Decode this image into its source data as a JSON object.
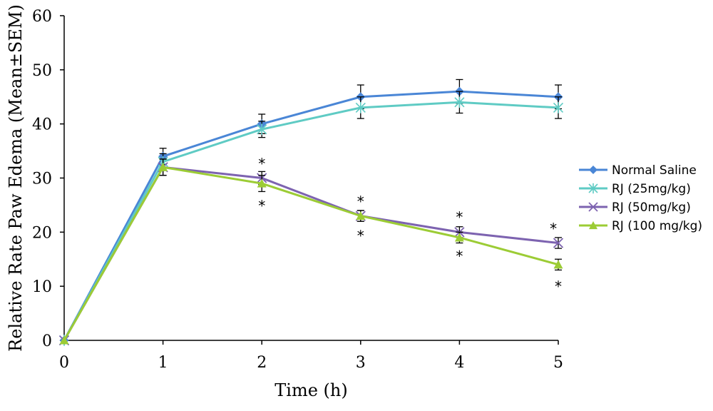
{
  "chart_data": {
    "type": "line",
    "title": "",
    "xlabel": "Time (h)",
    "ylabel": "Relative Rate Paw Edema (Mean±SEM)",
    "x": [
      0,
      1,
      2,
      3,
      4,
      5
    ],
    "xlim": [
      0,
      5
    ],
    "ylim": [
      0,
      60
    ],
    "yticks": [
      0,
      10,
      20,
      30,
      40,
      50,
      60
    ],
    "grid": false,
    "legend_position": "right",
    "series": [
      {
        "name": "Normal Saline",
        "color": "#4a86d6",
        "marker": "diamond",
        "values": [
          0,
          34,
          40,
          45,
          46,
          45
        ],
        "error": [
          0,
          1.5,
          1.8,
          2.2,
          2.2,
          2.2
        ]
      },
      {
        "name": "RJ (25mg/kg)",
        "color": "#5fcbc4",
        "marker": "asterisk",
        "values": [
          0,
          33,
          39,
          43,
          44,
          43
        ],
        "error": [
          0,
          1.5,
          1.5,
          2.0,
          2.0,
          2.0
        ]
      },
      {
        "name": "RJ (50mg/kg)",
        "color": "#7d63b0",
        "marker": "x",
        "values": [
          0,
          32,
          30,
          23,
          20,
          18
        ],
        "error": [
          0,
          1.5,
          1.2,
          1.0,
          1.0,
          1.0
        ]
      },
      {
        "name": "RJ (100 mg/kg)",
        "color": "#9ccc35",
        "marker": "triangle",
        "values": [
          0,
          32,
          29,
          23,
          19,
          14
        ],
        "error": [
          0,
          1.5,
          1.5,
          1.0,
          1.0,
          1.0
        ]
      }
    ],
    "annotations": [
      {
        "text": "*",
        "x": 2,
        "y": 33.3
      },
      {
        "text": "*",
        "x": 2,
        "y": 25.5
      },
      {
        "text": "*",
        "x": 3,
        "y": 26.3
      },
      {
        "text": "*",
        "x": 3,
        "y": 20.0
      },
      {
        "text": "*",
        "x": 4,
        "y": 23.4
      },
      {
        "text": "*",
        "x": 4,
        "y": 16.2
      },
      {
        "text": "*",
        "x": 4.95,
        "y": 21.3
      },
      {
        "text": "*",
        "x": 5,
        "y": 10.6
      }
    ]
  }
}
